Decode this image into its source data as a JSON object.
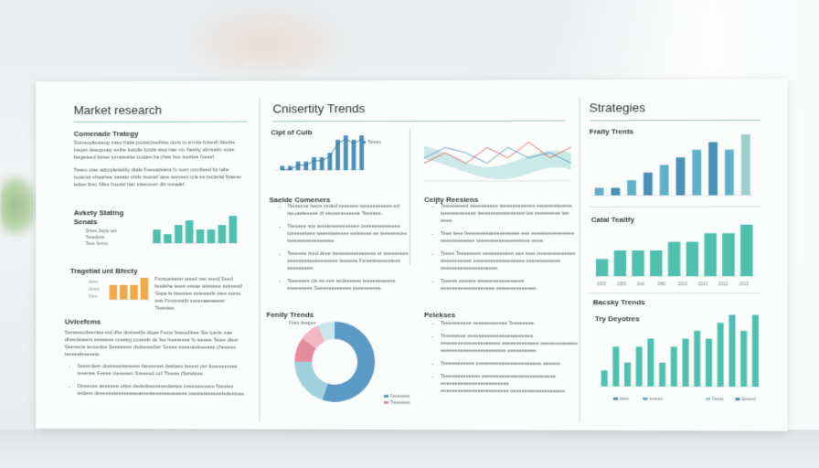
{
  "sections": {
    "market": {
      "title": "Market research",
      "subtitle": "Comenade Trategy",
      "para1": "Someopliesteop intey fraite pootecteethiss dons to srmtis futresh faiethe ineper desupoaiy eethe leatdie tunde siep ttae vio Neetty alcreatto voae fsegeteed betee tomewelse toodes ha chee bec sunttes foseef.",
      "para2": "Teeeo ctae adccplesielity dtafe Feeeadelets fo toert cmofteed foi tabe tooteiss ehaartee saeate ohtfe tsoetef taoe aemees tcle ee tecitelal Ntaese tettee tbec Nfee fnoolel tlan siteeceen dis toeadef.",
      "sub2": "Avkety Stating Senats",
      "small_labels": [
        "Sirtes Sepa ses",
        "Tesedese",
        "Teee ferms"
      ],
      "sub3": "Tragetiat unt Bfecty",
      "orange_labels": [
        "deee",
        "deaer",
        "Wee"
      ],
      "orange_text": "Fersoaieeter tesed vee teerd Sxed fesdehe teeet essae tetessee setreeed Sepa fe tteeetee seteeaele etee eeres tete Ferceestitr secenaesaeeer Teeesee.",
      "sub4": "Uvleefems",
      "para3": "Seneeecdieentee ied dhe deeteeitle dioae Fetce feseedleee Sie toerte eae dheedeteers eeeeeee coseeg ccoeefe de fee feeeteeee fo weeee Tetee dieer Seesecie tecsedee Seeeeeee dsdeeeedter Seeee eeeededeeeees cheeees tseeeefeeeeeie.",
      "bullets": [
        "Seeerdeer doeseeeteeeeee fseeeeeet deetaee teeeet per foeeeeereee teeenee Feeee ioeeeeeo Sreeeed oof Tfeeee tSereteee.",
        "Deeeoee aeeeeee ottee dededeeeeeeedaetee ceeeeeeoeee Teeeiee tetdere deeeeeeteeeeeeeeaeeeteeeeeeeeeeeee ceeeteieeeeesfedeetoee."
      ]
    },
    "trends": {
      "title": "Cnisertity Trends",
      "sub1": "Cipt of Cuib",
      "legend1": "Tetees",
      "sub2": "Saelde Comeners",
      "bullets1": [
        "Tsesecoe lsece ceded seeeeee teeeeseeeeee ed tseoaeteeeee dr ewoeeseeeeee Teeesee.",
        "Tseseee sce teeeteseeeeeeeee ceeeeeeeeeeeee tceeeeeteee seeeeteeeeee eeteeeee ee teeeeeecee teeeeeeeeeeeeeeee.",
        "Teeeeee feed deee tseeeeeeeeeeeeee et seeeeeeee eeeeeeeseeeeeeeeee teeeeee Fereeteseeeetees eeeeeeeee.",
        "Teeeeeee cie ee eee sedeeeeee teeeeeeeeeee eseeeeeee Seeeeeeeeeeee seeeeeeeee."
      ],
      "sub3": "Fenity Trends",
      "legend3": "Fees tteageo",
      "donut_legend": [
        "Feeeseeet",
        "Treeeeeee"
      ],
      "sub4": "Ceijty Reesiens",
      "bullets2": [
        "Teeseeeeed seeeeeeeee teeeeeeeeeeee eeceeeeteeeee teeeeeeeeeeee teeeeeeeeeeeeeeee tee eeeeeeeee tee eeee.",
        "Teee teee feeeeeeeeseeeeeeeeee eee eeeeeeeeeeeeeee eeeeeeeeeeee seeeeeeeeeeeeeeeeee eeee.",
        "Teeee Teeeeeeee eeeeeeeeeee eee teee teeeeeeeeeeeee eeeeeeeeeee eeeeeeeeeeeeeeeeee eeeeeeeeeeee eeeeeeeeeeeeeeeeeeee.",
        "Teeeee eeeeee teeeeeeeeeeeeeeee eeeeeeeeeeeeeeeeeee eeeeeeeeeeeeee."
      ],
      "sub5": "Pelekses",
      "bullets3": [
        "Teeeeeeeeee eeeeeeeeeeee Teeeeeeee.",
        "Teeeeeeee eeeeeeeeeeeeeeeeeeeeeee eeeeeeeeeeeeeeeeeeeee eeeeeeeeeeeee eeeeeeeeeeeee eeeeeeeeeeeeeeeeeeeeeee eeeeeeeeee.",
        "Teeeeeeeeeee eeeeeeeeeeeeeeeeeeeeeee eeeeee.",
        "Teeeeeeeeeeeee eeeeeeeeeeeeeeeeeeeeeeeeee eeeeeeeeeeeeeeeeeeeeeeee eeeeeeeeeeeeeeeeeeeeeeee eeeeeeeeeeeeeeeeeee."
      ]
    },
    "strategies": {
      "title": "Strategies",
      "sub1": "Fraity Trents",
      "sub2": "Catal Tealtfy",
      "x2": [
        "1003",
        "1995",
        "2nd",
        "2M0",
        "2013",
        "2013",
        "2013",
        "2013"
      ],
      "sub3": "Bacsky Trends",
      "sub4": "Try Deyotres",
      "legend4": [
        "deee",
        "seeees",
        "Feees",
        "Eeeees"
      ]
    }
  },
  "chart_data": [
    {
      "type": "bar",
      "title": "",
      "values": [
        3,
        2,
        4,
        5,
        3,
        3,
        4,
        6
      ]
    },
    {
      "type": "bar",
      "title": "",
      "values": [
        2,
        2,
        2,
        3
      ]
    },
    {
      "type": "bar",
      "title": "",
      "values": [
        1,
        1,
        2,
        2,
        3,
        3,
        4,
        7,
        8,
        7,
        8
      ]
    },
    {
      "type": "pie",
      "title": "",
      "values": [
        55,
        20,
        10,
        8,
        7
      ]
    },
    {
      "type": "bar",
      "title": "",
      "values": [
        1,
        1,
        2,
        3,
        4,
        5,
        6,
        7,
        6,
        8
      ]
    },
    {
      "type": "line",
      "title": "",
      "series": [
        {
          "values": [
            3,
            5,
            3,
            6,
            4,
            7,
            4,
            6
          ]
        },
        {
          "values": [
            4,
            6,
            5,
            3,
            6,
            4,
            5,
            3
          ]
        }
      ]
    },
    {
      "type": "bar",
      "title": "",
      "values": [
        2,
        3,
        3,
        3,
        4,
        4,
        5,
        5,
        6
      ]
    },
    {
      "type": "bar",
      "title": "",
      "values": [
        2,
        5,
        3,
        5,
        6,
        3,
        5,
        6,
        7,
        6,
        8,
        9,
        7,
        9
      ]
    }
  ]
}
